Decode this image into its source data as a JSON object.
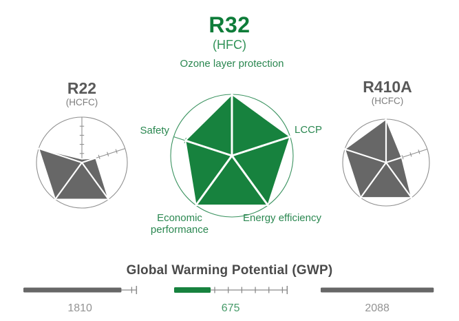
{
  "header": {
    "title": "R32",
    "subtitle": "(HFC)"
  },
  "left_chart": {
    "title": "R22",
    "subtitle": "(HCFC)"
  },
  "right_chart": {
    "title": "R410A",
    "subtitle": "(HCFC)"
  },
  "axis_labels": {
    "ozone": "Ozone layer protection",
    "lccp": "LCCP",
    "energy": "Energy efficiency",
    "economic": "Economic performance",
    "safety": "Safety"
  },
  "gwp": {
    "title": "Global Warming Potential (GWP)"
  },
  "colors": {
    "green_fill": "#17823E",
    "green_line": "#3B9360",
    "green_title": "#0E7C39",
    "green_sub": "#2F9156",
    "green_text": "#2A8750",
    "green_value": "#459A68",
    "gray_fill": "#676767",
    "gray_line": "#8F8F8F",
    "gray_title": "#595959",
    "gray_sub": "#7D7D7D",
    "gray_value": "#939393",
    "gwp_line": "#8A8A8A",
    "gwp_title": "#4A4A4A"
  },
  "chart_data": [
    {
      "type": "radar",
      "name": "R22",
      "subtitle": "(HCFC)",
      "theme": "gray",
      "axes": [
        "Ozone layer protection",
        "LCCP",
        "Energy efficiency",
        "Economic performance",
        "Safety"
      ],
      "values": [
        0.08,
        0.32,
        1,
        1,
        1
      ],
      "scale": [
        0,
        1
      ]
    },
    {
      "type": "radar",
      "name": "R32",
      "subtitle": "(HFC)",
      "theme": "green",
      "axes": [
        "Ozone layer protection",
        "LCCP",
        "Energy efficiency",
        "Economic performance",
        "Safety"
      ],
      "values": [
        1,
        1,
        1,
        1,
        0.8
      ],
      "scale": [
        0,
        1
      ]
    },
    {
      "type": "radar",
      "name": "R410A",
      "subtitle": "(HCFC)",
      "theme": "gray",
      "axes": [
        "Ozone layer protection",
        "LCCP",
        "Energy efficiency",
        "Economic performance",
        "Safety"
      ],
      "values": [
        1,
        0.38,
        1,
        1,
        1
      ],
      "scale": [
        0,
        1
      ]
    },
    {
      "type": "bar",
      "title": "Global Warming Potential (GWP)",
      "categories": [
        "R22",
        "R32",
        "R410A"
      ],
      "values": [
        1810,
        675,
        2088
      ],
      "scale_max": 2088,
      "tick_step": 250,
      "orientation": "horizontal"
    }
  ]
}
